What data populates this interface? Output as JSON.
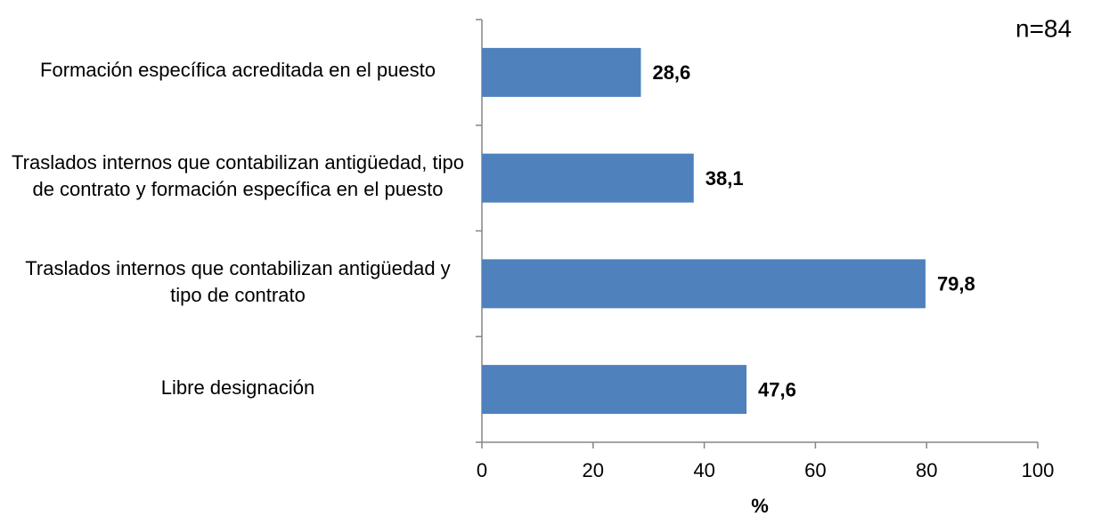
{
  "chart_data": {
    "type": "bar",
    "orientation": "horizontal",
    "categories": [
      "Formación específica acreditada en el puesto",
      "Traslados internos que contabilizan antigüedad, tipo de contrato y formación específica en el puesto",
      "Traslados internos que contabilizan antigüedad y tipo de contrato",
      "Libre designación"
    ],
    "values": [
      28.6,
      38.1,
      79.8,
      47.6
    ],
    "value_labels": [
      "28,6",
      "38,1",
      "79,8",
      "47,6"
    ],
    "color": "#4f81bd",
    "xlim": [
      0,
      100
    ],
    "xticks": [
      0,
      20,
      40,
      60,
      80,
      100
    ],
    "x_label": "%",
    "annotation": "n=84",
    "grid": false
  }
}
